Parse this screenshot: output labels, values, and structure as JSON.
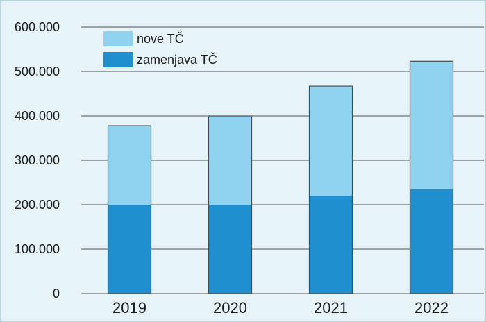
{
  "chart_data": {
    "type": "bar",
    "stacked": true,
    "categories": [
      "2019",
      "2020",
      "2021",
      "2022"
    ],
    "series": [
      {
        "name": "zamenjava TČ",
        "values": [
          200000,
          200000,
          220000,
          235000
        ],
        "color": "#1f8fcf"
      },
      {
        "name": "nove TČ",
        "values": [
          178000,
          200000,
          247000,
          288000
        ],
        "color": "#8fd3f1"
      }
    ],
    "ylim": [
      0,
      600000
    ],
    "yticks": [
      0,
      100000,
      200000,
      300000,
      400000,
      500000,
      600000
    ],
    "ytick_labels": [
      "0",
      "100.000",
      "200.000",
      "300.000",
      "400.000",
      "500.000",
      "600.000"
    ],
    "xlabel": "",
    "ylabel": "",
    "title": "",
    "grid": true,
    "legend_position": "top-left",
    "legend_order": [
      "nove TČ",
      "zamenjava TČ"
    ],
    "colors": {
      "background": "#e6f3f8",
      "grid": "#555555",
      "bar_outline": "#4a4a4a"
    }
  }
}
